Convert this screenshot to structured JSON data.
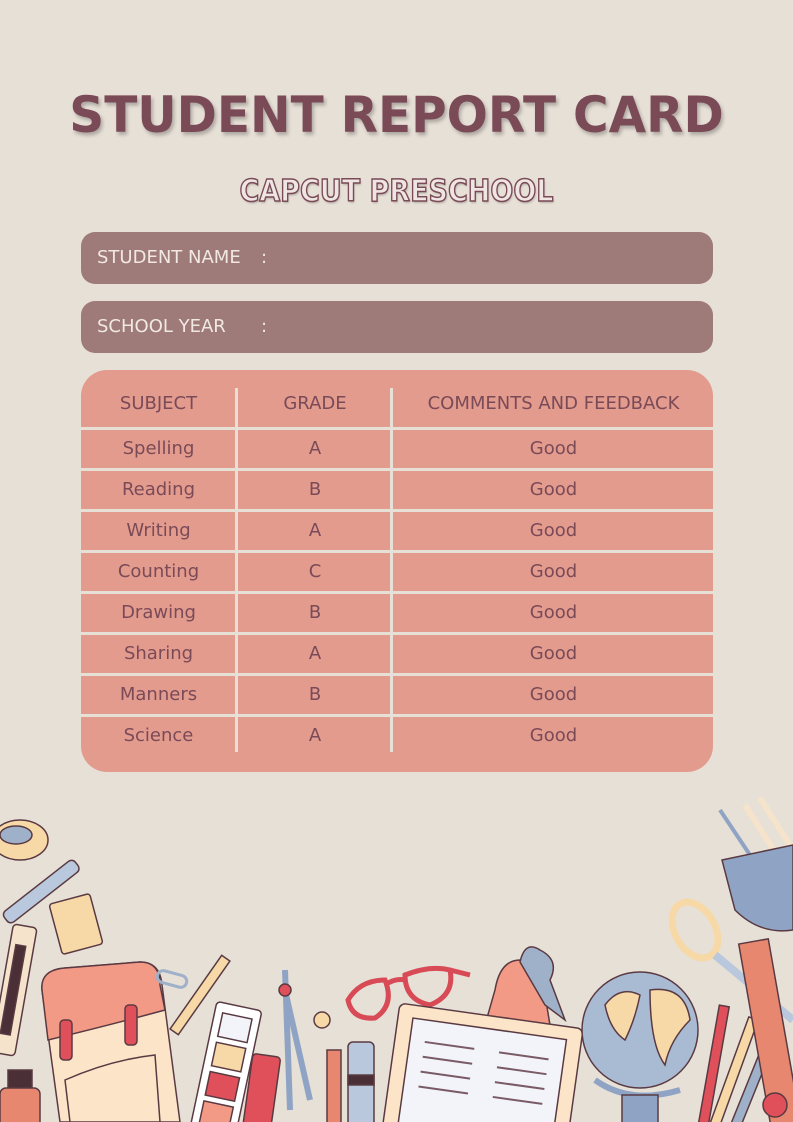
{
  "header": {
    "title": "STUDENT REPORT CARD",
    "school": "CAPCUT PRESCHOOL"
  },
  "fields": [
    {
      "label": "STUDENT NAME",
      "separator": ":",
      "value": ""
    },
    {
      "label": "SCHOOL YEAR",
      "separator": ":",
      "value": ""
    }
  ],
  "table": {
    "columns": [
      "SUBJECT",
      "GRADE",
      "COMMENTS AND FEEDBACK"
    ],
    "rows": [
      [
        "Spelling",
        "A",
        "Good"
      ],
      [
        "Reading",
        "B",
        "Good"
      ],
      [
        "Writing",
        "A",
        "Good"
      ],
      [
        "Counting",
        "C",
        "Good"
      ],
      [
        "Drawing",
        "B",
        "Good"
      ],
      [
        "Sharing",
        "A",
        "Good"
      ],
      [
        "Manners",
        "B",
        "Good"
      ],
      [
        "Science",
        "A",
        "Good"
      ]
    ]
  },
  "colors": {
    "background": "#e7e0d7",
    "title": "#7a4a57",
    "field_bg": "#9e7b78",
    "table_bg": "#e39b8e"
  }
}
